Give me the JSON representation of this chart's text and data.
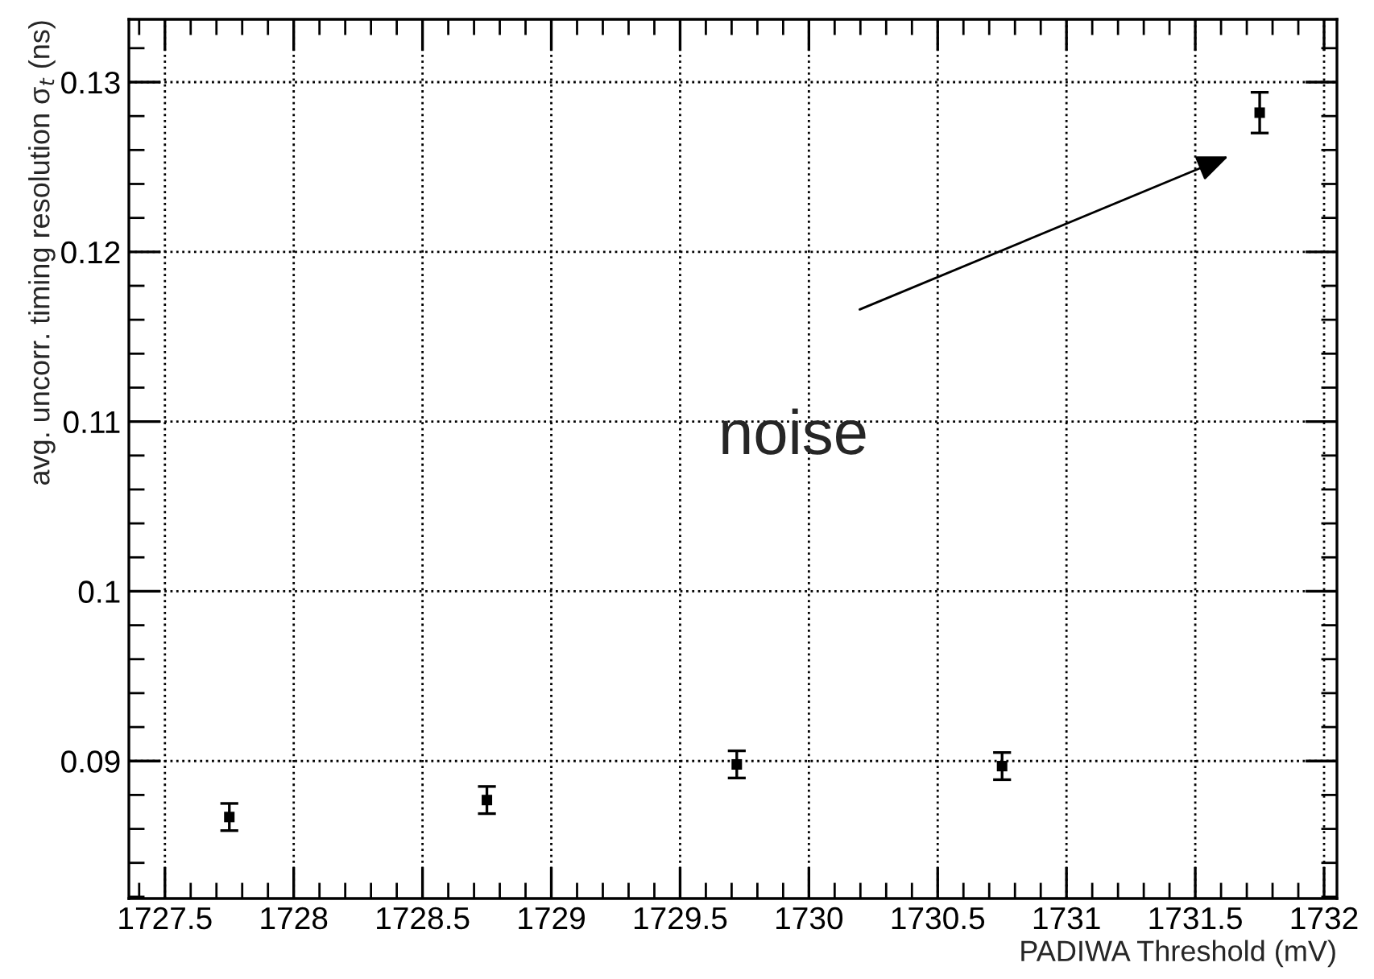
{
  "chart_data": {
    "type": "scatter",
    "xlabel": "PADIWA Threshold (mV)",
    "ylabel": "avg. uncorr. timing resolution σ$_{t}$ (ns)",
    "x": [
      1727.75,
      1728.75,
      1729.72,
      1730.75,
      1731.75
    ],
    "values": [
      0.0867,
      0.0877,
      0.0898,
      0.0897,
      0.1282
    ],
    "errors": [
      0.0008,
      0.0008,
      0.0008,
      0.0008,
      0.0012
    ],
    "color": "#000000",
    "marker": "square",
    "grid": true,
    "xlim": [
      1727.36,
      1732.05
    ],
    "ylim": [
      0.0819,
      0.1337
    ],
    "xticks": [
      1727.5,
      1728,
      1728.5,
      1729,
      1729.5,
      1730,
      1730.5,
      1731,
      1731.5,
      1732
    ],
    "yticks": [
      0.09,
      0.1,
      0.11,
      0.12,
      0.13
    ],
    "annotations": [
      "noise"
    ]
  }
}
